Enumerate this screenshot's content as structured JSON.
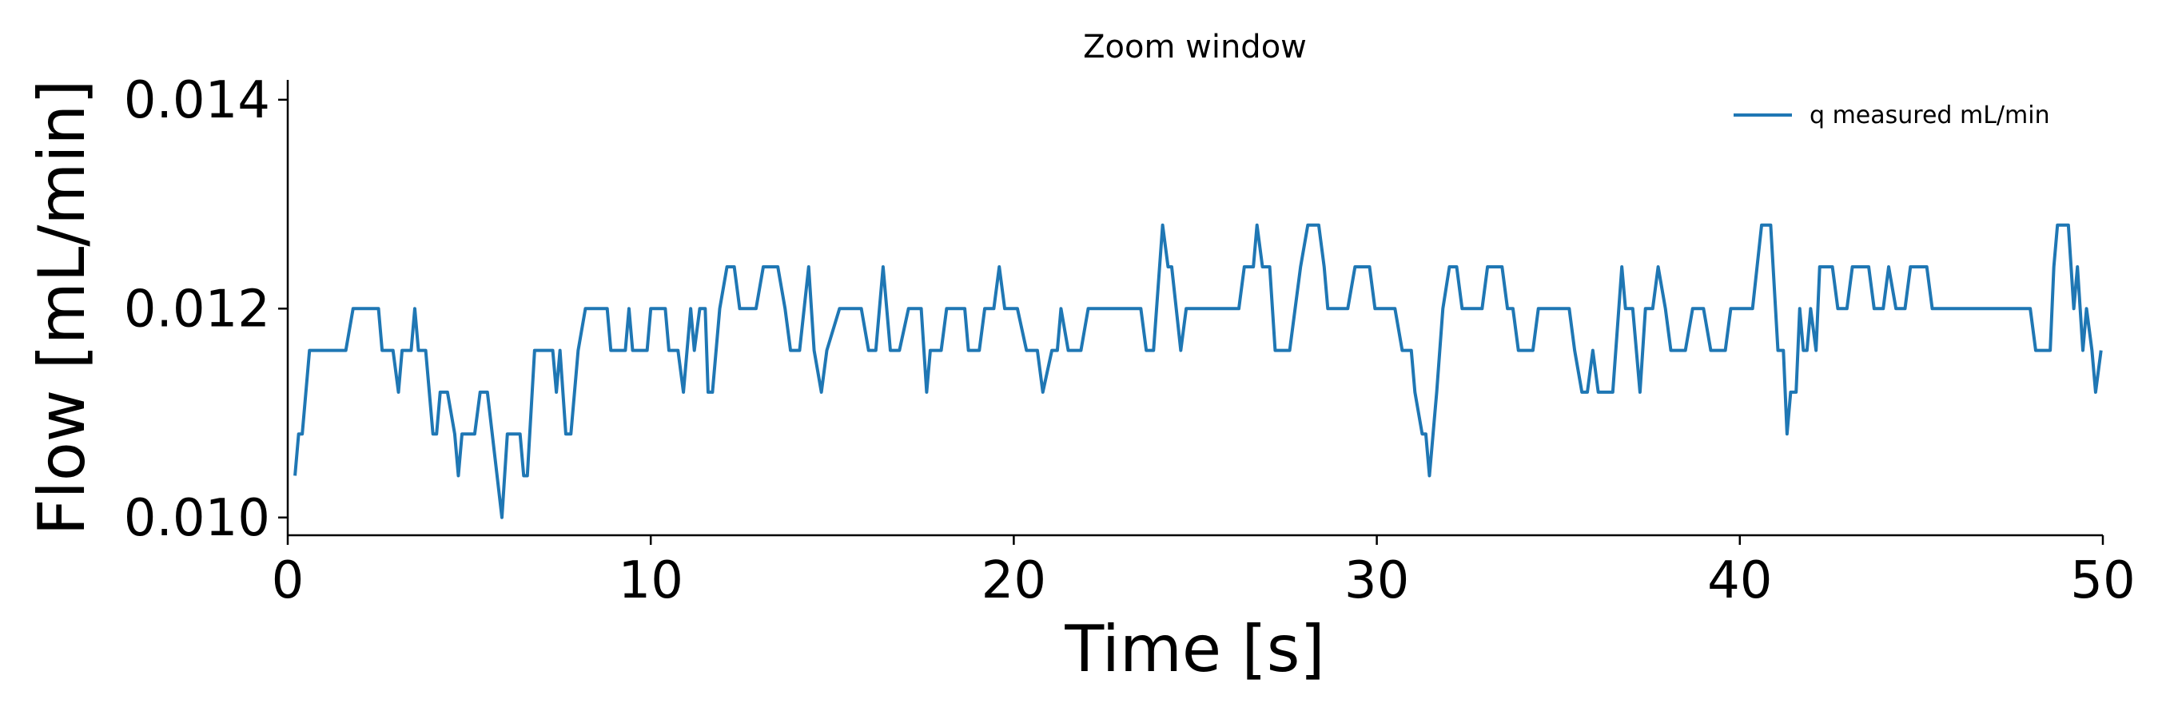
{
  "chart_data": {
    "type": "line",
    "title": "Zoom window",
    "xlabel": "Time [s]",
    "ylabel": "Flow [mL/min]",
    "xlim": [
      0,
      50
    ],
    "ylim": [
      0.00983,
      0.01419
    ],
    "xticks": [
      0,
      10,
      20,
      30,
      40,
      50
    ],
    "yticks": [
      {
        "value": 0.01,
        "label": "0.010"
      },
      0.012,
      0.014
    ],
    "legend": "upper right",
    "series": [
      {
        "name": "q measured mL/min",
        "color": "#1f77b4",
        "x": [
          0.2,
          0.3,
          0.4,
          0.6,
          1.6,
          1.8,
          2.5,
          2.6,
          2.9,
          3.05,
          3.15,
          3.4,
          3.5,
          3.6,
          3.8,
          4.0,
          4.1,
          4.2,
          4.4,
          4.6,
          4.7,
          4.8,
          5.15,
          5.3,
          5.5,
          5.9,
          6.05,
          6.4,
          6.5,
          6.6,
          6.8,
          7.3,
          7.4,
          7.5,
          7.66,
          7.8,
          7.9,
          8.0,
          8.2,
          8.8,
          8.9,
          9.3,
          9.4,
          9.5,
          9.9,
          10.0,
          10.4,
          10.5,
          10.75,
          10.9,
          11.1,
          11.2,
          11.35,
          11.5,
          11.58,
          11.7,
          11.9,
          12.1,
          12.3,
          12.45,
          12.9,
          13.1,
          13.5,
          13.7,
          13.85,
          14.1,
          14.35,
          14.5,
          14.7,
          14.85,
          15.2,
          15.8,
          16.0,
          16.2,
          16.4,
          16.6,
          16.85,
          17.1,
          17.45,
          17.6,
          17.7,
          18.0,
          18.15,
          18.65,
          18.75,
          19.05,
          19.2,
          19.45,
          19.6,
          19.75,
          20.1,
          20.35,
          20.65,
          20.8,
          21.05,
          21.2,
          21.3,
          21.5,
          21.85,
          22.05,
          23.5,
          23.65,
          23.85,
          24.1,
          24.25,
          24.35,
          24.6,
          24.75,
          26.2,
          26.35,
          26.6,
          26.7,
          26.85,
          27.05,
          27.2,
          27.6,
          27.75,
          27.9,
          28.1,
          28.4,
          28.55,
          28.65,
          29.2,
          29.4,
          29.8,
          29.95,
          30.5,
          30.7,
          30.95,
          31.05,
          31.25,
          31.35,
          31.45,
          31.65,
          31.82,
          32.0,
          32.2,
          32.35,
          32.9,
          33.05,
          33.45,
          33.6,
          33.75,
          33.9,
          34.3,
          34.45,
          35.3,
          35.45,
          35.65,
          35.8,
          35.95,
          36.1,
          36.5,
          36.75,
          36.85,
          37.05,
          37.25,
          37.4,
          37.6,
          37.75,
          37.95,
          38.1,
          38.5,
          38.7,
          39.0,
          39.2,
          39.6,
          39.75,
          40.35,
          40.6,
          40.85,
          41.05,
          41.2,
          41.3,
          41.4,
          41.55,
          41.65,
          41.75,
          41.85,
          41.95,
          42.1,
          42.2,
          42.55,
          42.7,
          42.95,
          43.1,
          43.55,
          43.7,
          43.95,
          44.1,
          44.3,
          44.55,
          44.7,
          45.15,
          45.3,
          45.7,
          48.0,
          48.15,
          48.55,
          48.65,
          48.75,
          49.05,
          49.2,
          49.3,
          49.45,
          49.55,
          49.7,
          49.8,
          49.95
        ],
        "values": [
          0.0104,
          0.0108,
          0.0108,
          0.0116,
          0.0116,
          0.012,
          0.012,
          0.0116,
          0.0116,
          0.0112,
          0.0116,
          0.0116,
          0.012,
          0.0116,
          0.0116,
          0.0108,
          0.0108,
          0.0112,
          0.0112,
          0.0108,
          0.0104,
          0.0108,
          0.0108,
          0.0112,
          0.0112,
          0.01,
          0.0108,
          0.0108,
          0.0104,
          0.0104,
          0.0116,
          0.0116,
          0.0112,
          0.0116,
          0.0108,
          0.0108,
          0.0112,
          0.0116,
          0.012,
          0.012,
          0.0116,
          0.0116,
          0.012,
          0.0116,
          0.0116,
          0.012,
          0.012,
          0.0116,
          0.0116,
          0.0112,
          0.012,
          0.0116,
          0.012,
          0.012,
          0.0112,
          0.0112,
          0.012,
          0.0124,
          0.0124,
          0.012,
          0.012,
          0.0124,
          0.0124,
          0.012,
          0.0116,
          0.0116,
          0.0124,
          0.0116,
          0.0112,
          0.0116,
          0.012,
          0.012,
          0.0116,
          0.0116,
          0.0124,
          0.0116,
          0.0116,
          0.012,
          0.012,
          0.0112,
          0.0116,
          0.0116,
          0.012,
          0.012,
          0.0116,
          0.0116,
          0.012,
          0.012,
          0.0124,
          0.012,
          0.012,
          0.0116,
          0.0116,
          0.0112,
          0.0116,
          0.0116,
          0.012,
          0.0116,
          0.0116,
          0.012,
          0.012,
          0.0116,
          0.0116,
          0.0128,
          0.0124,
          0.0124,
          0.0116,
          0.012,
          0.012,
          0.0124,
          0.0124,
          0.0128,
          0.0124,
          0.0124,
          0.0116,
          0.0116,
          0.012,
          0.0124,
          0.0128,
          0.0128,
          0.0124,
          0.012,
          0.012,
          0.0124,
          0.0124,
          0.012,
          0.012,
          0.0116,
          0.0116,
          0.0112,
          0.0108,
          0.0108,
          0.0104,
          0.0112,
          0.012,
          0.0124,
          0.0124,
          0.012,
          0.012,
          0.0124,
          0.0124,
          0.012,
          0.012,
          0.0116,
          0.0116,
          0.012,
          0.012,
          0.0116,
          0.0112,
          0.0112,
          0.0116,
          0.0112,
          0.0112,
          0.0124,
          0.012,
          0.012,
          0.0112,
          0.012,
          0.012,
          0.0124,
          0.012,
          0.0116,
          0.0116,
          0.012,
          0.012,
          0.0116,
          0.0116,
          0.012,
          0.012,
          0.0128,
          0.0128,
          0.0116,
          0.0116,
          0.0108,
          0.0112,
          0.0112,
          0.012,
          0.0116,
          0.0116,
          0.012,
          0.0116,
          0.0124,
          0.0124,
          0.012,
          0.012,
          0.0124,
          0.0124,
          0.012,
          0.012,
          0.0124,
          0.012,
          0.012,
          0.0124,
          0.0124,
          0.012,
          0.012,
          0.012,
          0.0116,
          0.0116,
          0.0124,
          0.0128,
          0.0128,
          0.012,
          0.0124,
          0.0116,
          0.012,
          0.0116,
          0.0112,
          0.0116
        ]
      }
    ]
  }
}
